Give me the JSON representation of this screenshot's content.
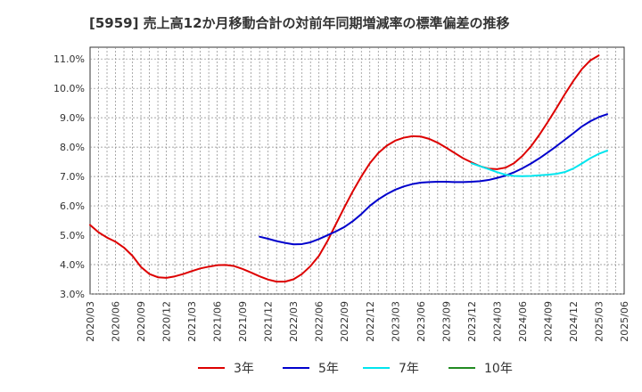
{
  "chart_data": {
    "type": "line",
    "title": "[5959]  売上高12か月移動合計の対前年同期増減率の標準偏差の推移",
    "xlabel": "",
    "ylabel": "",
    "ylim": [
      3.0,
      11.4
    ],
    "yticks": [
      "3.0%",
      "4.0%",
      "5.0%",
      "6.0%",
      "7.0%",
      "8.0%",
      "9.0%",
      "10.0%",
      "11.0%"
    ],
    "ytick_values": [
      3,
      4,
      5,
      6,
      7,
      8,
      9,
      10,
      11
    ],
    "x_categories": [
      "2020/03",
      "2020/06",
      "2020/09",
      "2020/12",
      "2021/03",
      "2021/06",
      "2021/09",
      "2021/12",
      "2022/03",
      "2022/06",
      "2022/09",
      "2022/12",
      "2023/03",
      "2023/06",
      "2023/09",
      "2023/12",
      "2024/03",
      "2024/06",
      "2024/09",
      "2024/12",
      "2025/03",
      "2025/06"
    ],
    "grid": true,
    "legend_position": "bottom",
    "series": [
      {
        "name": "3年",
        "color": "#dd0000",
        "points": [
          [
            0,
            5.35
          ],
          [
            1,
            5.1
          ],
          [
            2,
            4.92
          ],
          [
            3,
            4.78
          ],
          [
            4,
            4.58
          ],
          [
            5,
            4.3
          ],
          [
            6,
            3.92
          ],
          [
            7,
            3.68
          ],
          [
            8,
            3.57
          ],
          [
            9,
            3.55
          ],
          [
            10,
            3.6
          ],
          [
            11,
            3.68
          ],
          [
            12,
            3.78
          ],
          [
            13,
            3.87
          ],
          [
            14,
            3.93
          ],
          [
            15,
            3.98
          ],
          [
            16,
            3.99
          ],
          [
            17,
            3.95
          ],
          [
            18,
            3.85
          ],
          [
            19,
            3.73
          ],
          [
            20,
            3.6
          ],
          [
            21,
            3.49
          ],
          [
            22,
            3.42
          ],
          [
            23,
            3.42
          ],
          [
            24,
            3.5
          ],
          [
            25,
            3.68
          ],
          [
            26,
            3.95
          ],
          [
            27,
            4.3
          ],
          [
            28,
            4.8
          ],
          [
            29,
            5.38
          ],
          [
            30,
            5.95
          ],
          [
            31,
            6.5
          ],
          [
            32,
            7.0
          ],
          [
            33,
            7.45
          ],
          [
            34,
            7.8
          ],
          [
            35,
            8.05
          ],
          [
            36,
            8.22
          ],
          [
            37,
            8.32
          ],
          [
            38,
            8.37
          ],
          [
            39,
            8.36
          ],
          [
            40,
            8.28
          ],
          [
            41,
            8.15
          ],
          [
            42,
            7.98
          ],
          [
            43,
            7.8
          ],
          [
            44,
            7.62
          ],
          [
            45,
            7.48
          ],
          [
            46,
            7.35
          ],
          [
            47,
            7.27
          ],
          [
            48,
            7.25
          ],
          [
            49,
            7.3
          ],
          [
            50,
            7.45
          ],
          [
            51,
            7.7
          ],
          [
            52,
            8.02
          ],
          [
            53,
            8.42
          ],
          [
            54,
            8.86
          ],
          [
            55,
            9.32
          ],
          [
            56,
            9.8
          ],
          [
            57,
            10.25
          ],
          [
            58,
            10.65
          ],
          [
            59,
            10.95
          ],
          [
            60,
            11.12
          ]
        ]
      },
      {
        "name": "5年",
        "color": "#0000cc",
        "points": [
          [
            20,
            4.95
          ],
          [
            21,
            4.88
          ],
          [
            22,
            4.8
          ],
          [
            23,
            4.74
          ],
          [
            24,
            4.69
          ],
          [
            25,
            4.7
          ],
          [
            26,
            4.76
          ],
          [
            27,
            4.87
          ],
          [
            28,
            5.0
          ],
          [
            29,
            5.13
          ],
          [
            30,
            5.28
          ],
          [
            31,
            5.48
          ],
          [
            32,
            5.72
          ],
          [
            33,
            6.0
          ],
          [
            34,
            6.22
          ],
          [
            35,
            6.4
          ],
          [
            36,
            6.55
          ],
          [
            37,
            6.66
          ],
          [
            38,
            6.74
          ],
          [
            39,
            6.79
          ],
          [
            40,
            6.81
          ],
          [
            41,
            6.82
          ],
          [
            42,
            6.82
          ],
          [
            43,
            6.81
          ],
          [
            44,
            6.81
          ],
          [
            45,
            6.82
          ],
          [
            46,
            6.84
          ],
          [
            47,
            6.88
          ],
          [
            48,
            6.95
          ],
          [
            49,
            7.03
          ],
          [
            50,
            7.14
          ],
          [
            51,
            7.28
          ],
          [
            52,
            7.44
          ],
          [
            53,
            7.62
          ],
          [
            54,
            7.82
          ],
          [
            55,
            8.03
          ],
          [
            56,
            8.25
          ],
          [
            57,
            8.47
          ],
          [
            58,
            8.7
          ],
          [
            59,
            8.88
          ],
          [
            60,
            9.02
          ],
          [
            61,
            9.12
          ]
        ]
      },
      {
        "name": "7年",
        "color": "#00e5ee",
        "points": [
          [
            45,
            7.45
          ],
          [
            46,
            7.35
          ],
          [
            47,
            7.25
          ],
          [
            48,
            7.15
          ],
          [
            49,
            7.06
          ],
          [
            50,
            7.02
          ],
          [
            51,
            7.01
          ],
          [
            52,
            7.02
          ],
          [
            53,
            7.04
          ],
          [
            54,
            7.06
          ],
          [
            55,
            7.09
          ],
          [
            56,
            7.15
          ],
          [
            57,
            7.27
          ],
          [
            58,
            7.44
          ],
          [
            59,
            7.62
          ],
          [
            60,
            7.77
          ],
          [
            61,
            7.88
          ]
        ]
      },
      {
        "name": "10年",
        "color": "#228b22",
        "points": []
      }
    ]
  }
}
